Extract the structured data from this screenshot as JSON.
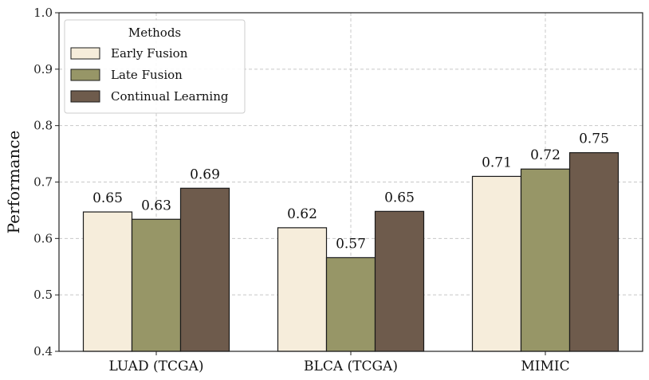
{
  "chart_data": {
    "type": "bar",
    "title": "",
    "xlabel": "",
    "ylabel": "Performance",
    "ylim": [
      0.4,
      1.0
    ],
    "yticks": [
      "0.4",
      "0.5",
      "0.6",
      "0.7",
      "0.8",
      "0.9",
      "1.0"
    ],
    "grid": true,
    "categories": [
      "LUAD (TCGA)",
      "BLCA (TCGA)",
      "MIMIC"
    ],
    "series": [
      {
        "name": "Early Fusion",
        "values": [
          0.647,
          0.619,
          0.71
        ],
        "labels": [
          "0.65",
          "0.62",
          "0.71"
        ],
        "color": "#f6eddb"
      },
      {
        "name": "Late Fusion",
        "values": [
          0.634,
          0.566,
          0.723
        ],
        "labels": [
          "0.63",
          "0.57",
          "0.72"
        ],
        "color": "#979667"
      },
      {
        "name": "Continual Learning",
        "values": [
          0.689,
          0.648,
          0.752
        ],
        "labels": [
          "0.69",
          "0.65",
          "0.75"
        ],
        "color": "#6e5b4c"
      }
    ],
    "legend": {
      "title": "Methods",
      "position": "top-left"
    }
  }
}
